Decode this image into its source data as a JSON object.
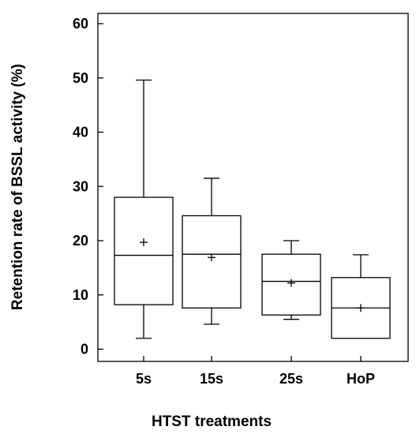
{
  "chart_data": {
    "type": "box",
    "xlabel": "HTST treatments",
    "ylabel": "Retention rate of BSSL activity (%)",
    "ylim": [
      0,
      60
    ],
    "yticks": [
      0,
      10,
      20,
      30,
      40,
      50,
      60
    ],
    "grid": false,
    "legend": "none",
    "categories": [
      "5s",
      "15s",
      "25s",
      "HoP"
    ],
    "boxes": [
      {
        "category": "5s",
        "min": 2.0,
        "q1": 8.2,
        "median": 17.3,
        "q3": 28.0,
        "max": 49.6,
        "mean": 19.7
      },
      {
        "category": "15s",
        "min": 4.6,
        "q1": 7.6,
        "median": 17.5,
        "q3": 24.6,
        "max": 31.5,
        "mean": 16.9
      },
      {
        "category": "25s",
        "min": 5.5,
        "q1": 6.3,
        "median": 12.5,
        "q3": 17.5,
        "max": 20.0,
        "mean": 12.2
      },
      {
        "category": "HoP",
        "min": 2.0,
        "q1": 2.0,
        "median": 7.6,
        "q3": 13.2,
        "max": 17.4,
        "mean": 7.6
      }
    ]
  }
}
